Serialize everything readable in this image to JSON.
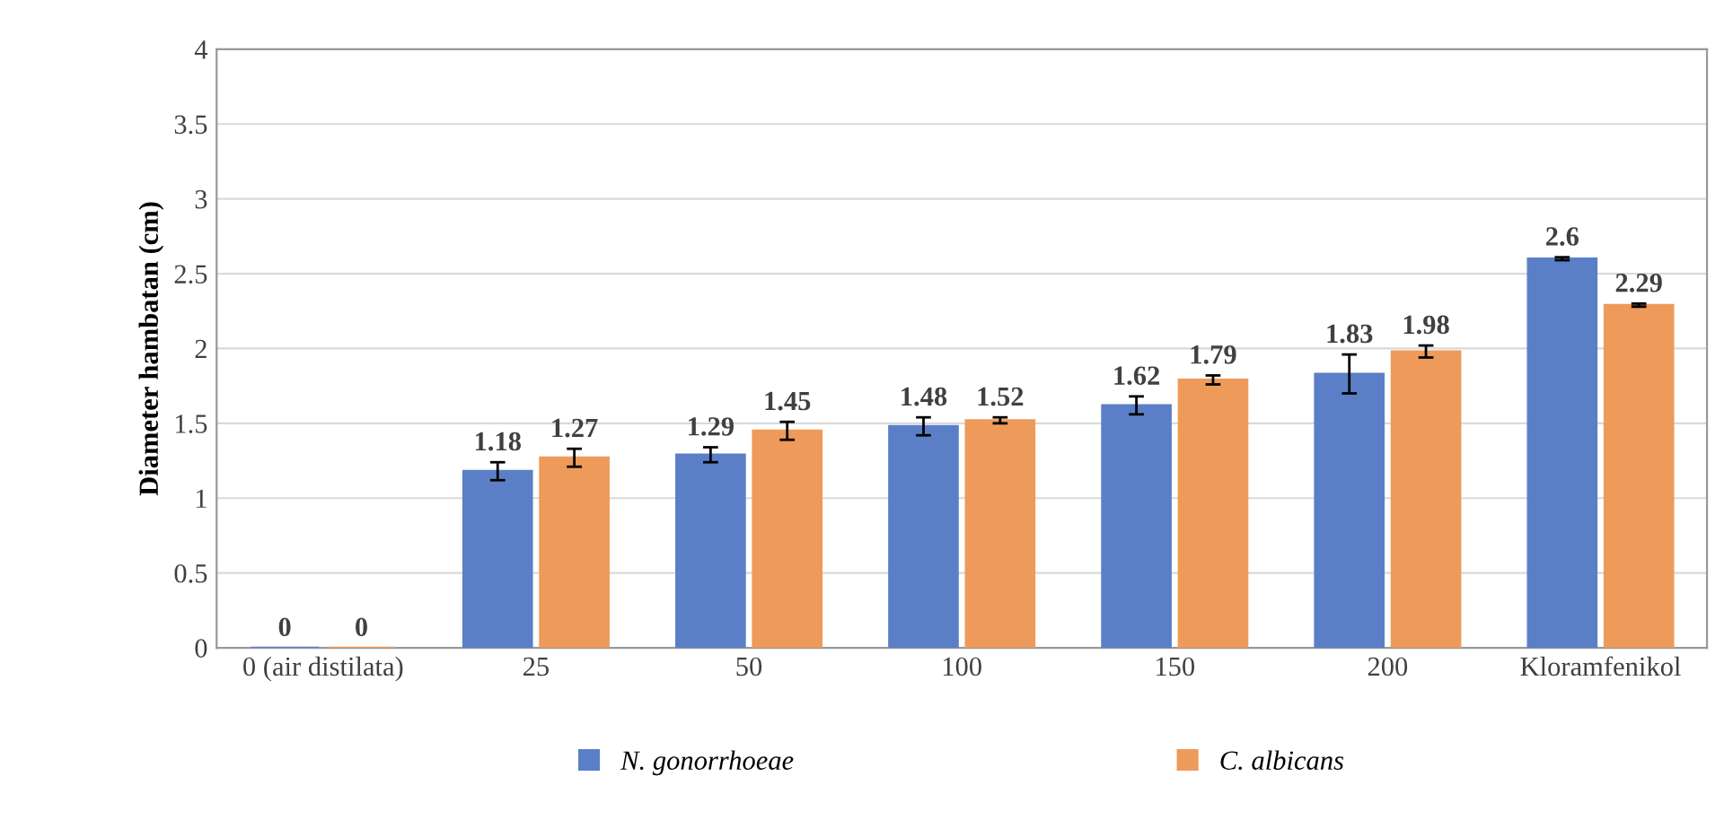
{
  "chart_data": {
    "type": "bar",
    "ylabel": "Diameter hambatan (cm)",
    "categories": [
      "0 (air distilata)",
      "25",
      "50",
      "100",
      "150",
      "200",
      "Kloramfenikol"
    ],
    "series": [
      {
        "name": "N. gonorrhoeae",
        "color": "#5b7fc7",
        "values": [
          0,
          1.18,
          1.29,
          1.48,
          1.62,
          1.83,
          2.6
        ],
        "errors": [
          null,
          0.06,
          0.05,
          0.06,
          0.06,
          0.13,
          0.01
        ]
      },
      {
        "name": "C. albicans",
        "color": "#ee9a5a",
        "values": [
          0,
          1.27,
          1.45,
          1.52,
          1.79,
          1.98,
          2.29
        ],
        "errors": [
          null,
          0.06,
          0.06,
          0.02,
          0.03,
          0.04,
          0.01
        ]
      }
    ],
    "ylim": [
      0,
      4
    ],
    "yticks": [
      0,
      0.5,
      1,
      1.5,
      2,
      2.5,
      3,
      3.5,
      4
    ],
    "grid": "y",
    "legend": "bottom",
    "data_labels": true
  }
}
